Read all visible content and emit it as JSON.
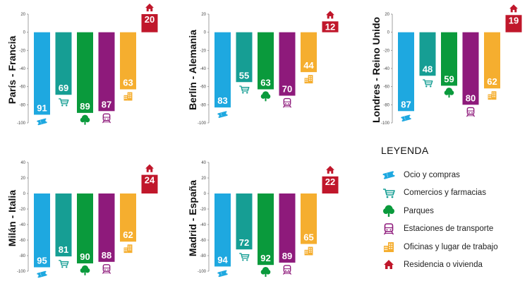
{
  "colors": {
    "ocio": "#1ea8e0",
    "comercios": "#169e94",
    "parques": "#0a9a3c",
    "transporte": "#8e1a7b",
    "oficinas": "#f5ae2f",
    "residencia": "#c0172b"
  },
  "legend": {
    "title": "LEYENDA",
    "items": [
      {
        "key": "ocio",
        "icon": "ticket-icon",
        "label": "Ocio y compras"
      },
      {
        "key": "comercios",
        "icon": "shopping-cart-icon",
        "label": "Comercios y farmacias"
      },
      {
        "key": "parques",
        "icon": "tree-icon",
        "label": "Parques"
      },
      {
        "key": "transporte",
        "icon": "train-icon",
        "label": "Estaciones de transporte"
      },
      {
        "key": "oficinas",
        "icon": "office-building-icon",
        "label": "Oficinas y lugar de trabajo"
      },
      {
        "key": "residencia",
        "icon": "house-icon",
        "label": "Residencia o vivienda"
      }
    ]
  },
  "chart_data": [
    {
      "type": "bar",
      "title": "París - Francia",
      "ylim": [
        -100,
        20
      ],
      "yticks": [
        20,
        0,
        -20,
        -40,
        -60,
        -80,
        -100
      ],
      "categories": [
        "ocio",
        "comercios",
        "parques",
        "transporte",
        "oficinas",
        "residencia"
      ],
      "values": [
        -91,
        -69,
        -89,
        -87,
        -63,
        20
      ],
      "labels": [
        "91",
        "69",
        "89",
        "87",
        "63",
        "20"
      ]
    },
    {
      "type": "bar",
      "title": "Berlín - Alemania",
      "ylim": [
        -100,
        20
      ],
      "yticks": [
        20,
        0,
        -20,
        -40,
        -60,
        -80,
        -100
      ],
      "categories": [
        "ocio",
        "comercios",
        "parques",
        "transporte",
        "oficinas",
        "residencia"
      ],
      "values": [
        -83,
        -55,
        -63,
        -70,
        -44,
        12
      ],
      "labels": [
        "83",
        "55",
        "63",
        "70",
        "44",
        "12"
      ]
    },
    {
      "type": "bar",
      "title": "Londres - Reino Unido",
      "ylim": [
        -100,
        20
      ],
      "yticks": [
        20,
        0,
        -20,
        -40,
        -60,
        -80,
        -100
      ],
      "categories": [
        "ocio",
        "comercios",
        "parques",
        "transporte",
        "oficinas",
        "residencia"
      ],
      "values": [
        -87,
        -48,
        -59,
        -80,
        -62,
        19
      ],
      "labels": [
        "87",
        "48",
        "59",
        "80",
        "62",
        "19"
      ]
    },
    {
      "type": "bar",
      "title": "Milán - Italia",
      "ylim": [
        -100,
        40
      ],
      "yticks": [
        40,
        20,
        0,
        -20,
        -40,
        -60,
        -80,
        -100
      ],
      "categories": [
        "ocio",
        "comercios",
        "parques",
        "transporte",
        "oficinas",
        "residencia"
      ],
      "values": [
        -95,
        -81,
        -90,
        -88,
        -62,
        24
      ],
      "labels": [
        "95",
        "81",
        "90",
        "88",
        "62",
        "24"
      ]
    },
    {
      "type": "bar",
      "title": "Madrid - España",
      "ylim": [
        -100,
        40
      ],
      "yticks": [
        40,
        20,
        0,
        -20,
        -40,
        -60,
        -80,
        -100
      ],
      "categories": [
        "ocio",
        "comercios",
        "parques",
        "transporte",
        "oficinas",
        "residencia"
      ],
      "values": [
        -94,
        -72,
        -92,
        -89,
        -65,
        22
      ],
      "labels": [
        "94",
        "72",
        "92",
        "89",
        "65",
        "22"
      ]
    }
  ]
}
